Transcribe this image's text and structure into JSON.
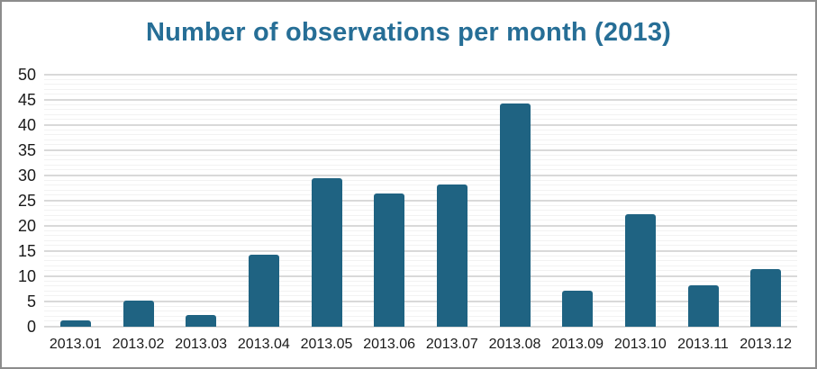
{
  "window": {
    "background": "#ffffff",
    "border_color": "#8c8c8c"
  },
  "chart_data": {
    "type": "bar",
    "title": "Number of observations per month (2013)",
    "categories": [
      "2013.01",
      "2013.02",
      "2013.03",
      "2013.04",
      "2013.05",
      "2013.06",
      "2013.07",
      "2013.08",
      "2013.09",
      "2013.10",
      "2013.11",
      "2013.12"
    ],
    "values": [
      1.3,
      5.2,
      2.4,
      14.3,
      29.4,
      26.4,
      28.2,
      44.3,
      7.2,
      22.4,
      8.2,
      11.4
    ],
    "ylim": [
      0,
      50
    ],
    "y_ticks": [
      0,
      5,
      10,
      15,
      20,
      25,
      30,
      35,
      40,
      45,
      50
    ],
    "grid": "major-and-minor",
    "minor_grid_step": 1,
    "major_grid_step": 5,
    "legend": "none",
    "colors": {
      "bar": "#1f6382",
      "title": "#266e96",
      "gridline_major": "#d9d9d9",
      "gridline_minor": "#f2f2f2",
      "tick_label": "#1a1a1a"
    }
  }
}
